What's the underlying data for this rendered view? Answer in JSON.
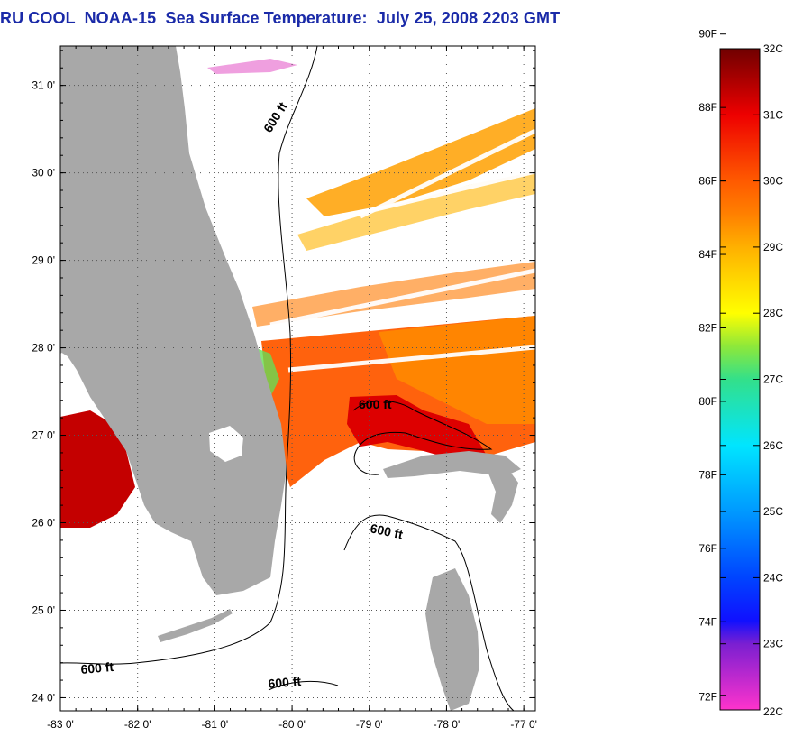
{
  "header": {
    "title": "RU COOL  NOAA-15  Sea Surface Temperature:  July 25, 2008 2203 GMT"
  },
  "map": {
    "lon_range": [
      -83,
      -76.85
    ],
    "lat_range": [
      23.85,
      31.45
    ],
    "lon_ticks": [
      {
        "value": -83,
        "label": "-83 0'"
      },
      {
        "value": -82,
        "label": "-82 0'"
      },
      {
        "value": -81,
        "label": "-81 0'"
      },
      {
        "value": -80,
        "label": "-80 0'"
      },
      {
        "value": -79,
        "label": "-79 0'"
      },
      {
        "value": -78,
        "label": "-78 0'"
      },
      {
        "value": -77,
        "label": "-77 0'"
      }
    ],
    "lat_ticks": [
      {
        "value": 31,
        "label": "31 0'"
      },
      {
        "value": 30,
        "label": "30 0'"
      },
      {
        "value": 29,
        "label": "29 0'"
      },
      {
        "value": 28,
        "label": "28 0'"
      },
      {
        "value": 27,
        "label": "27 0'"
      },
      {
        "value": 26,
        "label": "26 0'"
      },
      {
        "value": 25,
        "label": "25 0'"
      },
      {
        "value": 24,
        "label": "24 0'"
      }
    ],
    "contour_labels": [
      {
        "text": "600 ft"
      },
      {
        "text": "600 ft"
      },
      {
        "text": "600 ft"
      },
      {
        "text": "600 ft"
      },
      {
        "text": "600 ft"
      }
    ],
    "land_color": "#a8a8a8",
    "grid": "dotted"
  },
  "colorbar": {
    "fahrenheit_labels": [
      "90F",
      "88F",
      "86F",
      "84F",
      "82F",
      "80F",
      "78F",
      "76F",
      "74F",
      "72F"
    ],
    "celsius_labels": [
      "32C",
      "31C",
      "30C",
      "29C",
      "28C",
      "27C",
      "26C",
      "25C",
      "24C",
      "23C",
      "22C"
    ],
    "stops": [
      {
        "c": 22,
        "color": "#ff33cc"
      },
      {
        "c": 23,
        "color": "#7a1fd1"
      },
      {
        "c": 23.35,
        "color": "#1010ff"
      },
      {
        "c": 24,
        "color": "#0044ff"
      },
      {
        "c": 25,
        "color": "#0099ff"
      },
      {
        "c": 26,
        "color": "#00e5ff"
      },
      {
        "c": 27,
        "color": "#33e08a"
      },
      {
        "c": 27.5,
        "color": "#8ee83a"
      },
      {
        "c": 28,
        "color": "#ffff00"
      },
      {
        "c": 29,
        "color": "#ffb000"
      },
      {
        "c": 29.5,
        "color": "#ff8000"
      },
      {
        "c": 30,
        "color": "#ff5a00"
      },
      {
        "c": 31,
        "color": "#ee0000"
      },
      {
        "c": 32,
        "color": "#700000"
      }
    ]
  }
}
